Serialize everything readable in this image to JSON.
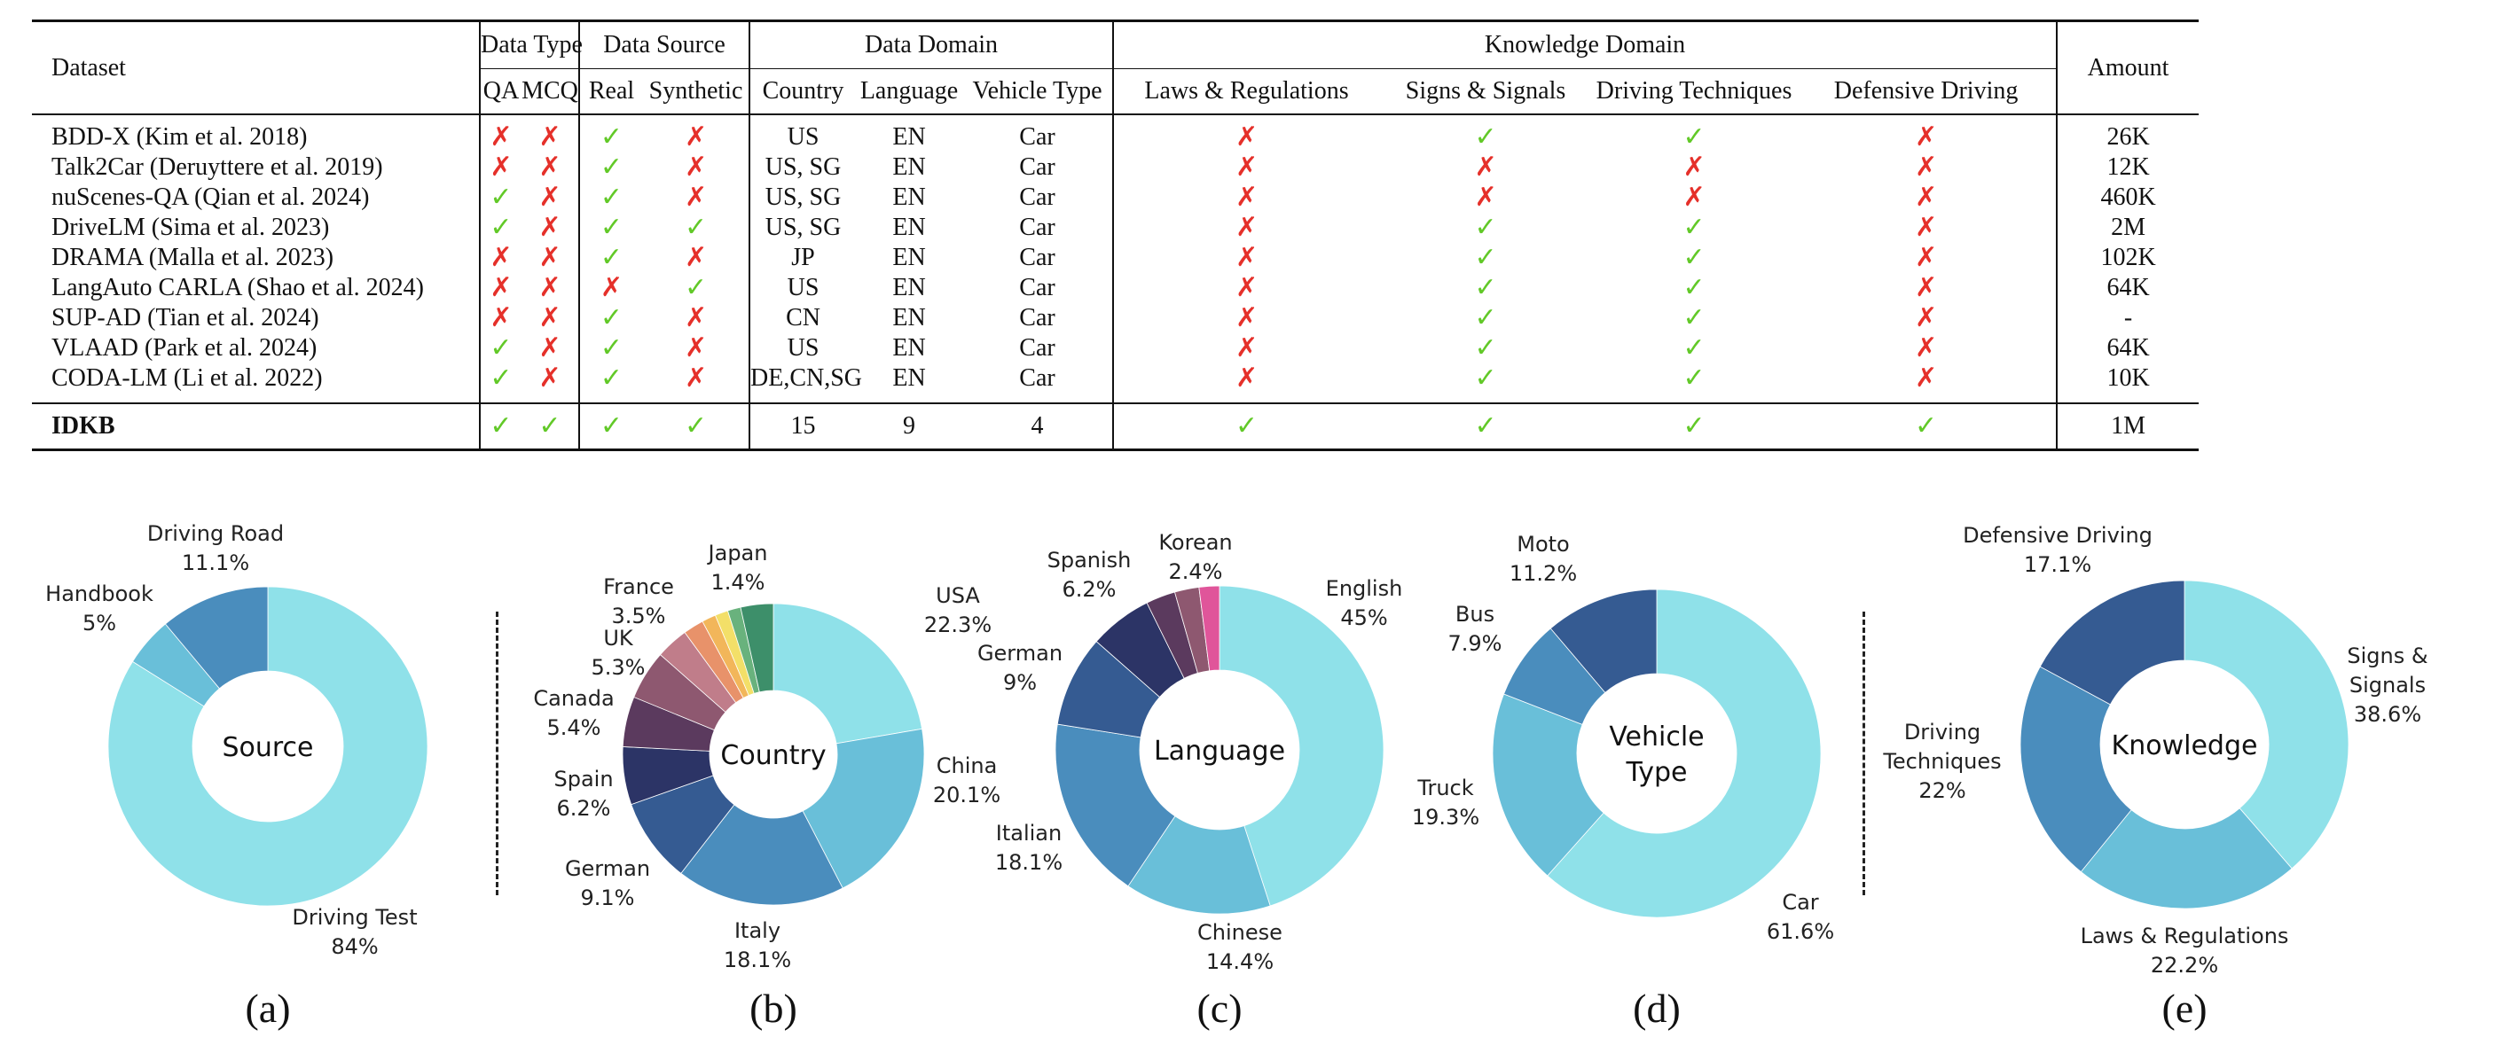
{
  "table": {
    "headers": {
      "dataset": "Dataset",
      "data_type": "Data Type",
      "data_source": "Data Source",
      "data_domain": "Data Domain",
      "knowledge_domain": "Knowledge Domain",
      "amount": "Amount",
      "qa": "QA",
      "mcq": "MCQ",
      "real": "Real",
      "synthetic": "Synthetic",
      "country": "Country",
      "language": "Language",
      "vehicle_type": "Vehicle Type",
      "laws": "Laws & Regulations",
      "signs": "Signs & Signals",
      "techniques": "Driving Techniques",
      "defensive": "Defensive Driving"
    },
    "symbols": {
      "yes": "✓",
      "no": "✗",
      "yes_color": "#62c928",
      "no_color": "#e5302a"
    },
    "rows": [
      {
        "dataset": "BDD-X (Kim et al. 2018)",
        "qa": "no",
        "mcq": "no",
        "real": "yes",
        "synthetic": "no",
        "country": "US",
        "language": "EN",
        "vehicle": "Car",
        "laws": "no",
        "signs": "yes",
        "techniques": "yes",
        "defensive": "no",
        "amount": "26K"
      },
      {
        "dataset": "Talk2Car (Deruyttere et al. 2019)",
        "qa": "no",
        "mcq": "no",
        "real": "yes",
        "synthetic": "no",
        "country": "US, SG",
        "language": "EN",
        "vehicle": "Car",
        "laws": "no",
        "signs": "no",
        "techniques": "no",
        "defensive": "no",
        "amount": "12K"
      },
      {
        "dataset": "nuScenes-QA (Qian et al. 2024)",
        "qa": "yes",
        "mcq": "no",
        "real": "yes",
        "synthetic": "no",
        "country": "US, SG",
        "language": "EN",
        "vehicle": "Car",
        "laws": "no",
        "signs": "no",
        "techniques": "no",
        "defensive": "no",
        "amount": "460K"
      },
      {
        "dataset": "DriveLM (Sima et al. 2023)",
        "qa": "yes",
        "mcq": "no",
        "real": "yes",
        "synthetic": "yes",
        "country": "US, SG",
        "language": "EN",
        "vehicle": "Car",
        "laws": "no",
        "signs": "yes",
        "techniques": "yes",
        "defensive": "no",
        "amount": "2M"
      },
      {
        "dataset": "DRAMA (Malla et al. 2023)",
        "qa": "no",
        "mcq": "no",
        "real": "yes",
        "synthetic": "no",
        "country": "JP",
        "language": "EN",
        "vehicle": "Car",
        "laws": "no",
        "signs": "yes",
        "techniques": "yes",
        "defensive": "no",
        "amount": "102K"
      },
      {
        "dataset": "LangAuto CARLA (Shao et al. 2024)",
        "qa": "no",
        "mcq": "no",
        "real": "no",
        "synthetic": "yes",
        "country": "US",
        "language": "EN",
        "vehicle": "Car",
        "laws": "no",
        "signs": "yes",
        "techniques": "yes",
        "defensive": "no",
        "amount": "64K"
      },
      {
        "dataset": "SUP-AD (Tian et al. 2024)",
        "qa": "no",
        "mcq": "no",
        "real": "yes",
        "synthetic": "no",
        "country": "CN",
        "language": "EN",
        "vehicle": "Car",
        "laws": "no",
        "signs": "yes",
        "techniques": "yes",
        "defensive": "no",
        "amount": "-"
      },
      {
        "dataset": "VLAAD (Park et al. 2024)",
        "qa": "yes",
        "mcq": "no",
        "real": "yes",
        "synthetic": "no",
        "country": "US",
        "language": "EN",
        "vehicle": "Car",
        "laws": "no",
        "signs": "yes",
        "techniques": "yes",
        "defensive": "no",
        "amount": "64K"
      },
      {
        "dataset": "CODA-LM (Li et al. 2022)",
        "qa": "yes",
        "mcq": "no",
        "real": "yes",
        "synthetic": "no",
        "country": "DE,CN,SG",
        "language": "EN",
        "vehicle": "Car",
        "laws": "no",
        "signs": "yes",
        "techniques": "yes",
        "defensive": "no",
        "amount": "10K"
      }
    ],
    "ours": {
      "dataset": "IDKB",
      "qa": "yes",
      "mcq": "yes",
      "real": "yes",
      "synthetic": "yes",
      "country": "15",
      "language": "9",
      "vehicle": "4",
      "laws": "yes",
      "signs": "yes",
      "techniques": "yes",
      "defensive": "yes",
      "amount": "1M"
    }
  },
  "chart_data": [
    {
      "type": "pie",
      "center_label": "Source",
      "panel_label": "(a)",
      "slices": [
        {
          "label": "Driving Test",
          "pct_text": "84%",
          "value": 84,
          "color": "#8fe1e9"
        },
        {
          "label": "Handbook",
          "pct_text": "5%",
          "value": 5,
          "color": "#69bfd9"
        },
        {
          "label": "Driving Road",
          "pct_text": "11.1%",
          "value": 11.1,
          "color": "#4a8dbd"
        }
      ]
    },
    {
      "type": "pie",
      "center_label": "Country",
      "panel_label": "(b)",
      "slices": [
        {
          "label": "USA",
          "pct_text": "22.3%",
          "value": 22.3,
          "color": "#8fe1e9"
        },
        {
          "label": "China",
          "pct_text": "20.1%",
          "value": 20.1,
          "color": "#69bfd9"
        },
        {
          "label": "Italy",
          "pct_text": "18.1%",
          "value": 18.1,
          "color": "#4a8dbd"
        },
        {
          "label": "German",
          "pct_text": "9.1%",
          "value": 9.1,
          "color": "#355b92"
        },
        {
          "label": "Spain",
          "pct_text": "6.2%",
          "value": 6.2,
          "color": "#2c3466"
        },
        {
          "label": "Canada",
          "pct_text": "5.4%",
          "value": 5.4,
          "color": "#5b3a5e"
        },
        {
          "label": "UK",
          "pct_text": "5.3%",
          "value": 5.3,
          "color": "#8e5870"
        },
        {
          "label": "France",
          "pct_text": "3.5%",
          "value": 3.5,
          "color": "#c07d8a"
        },
        {
          "label": "",
          "pct_text": "",
          "value": 2.2,
          "color": "#e8926a"
        },
        {
          "label": "",
          "pct_text": "",
          "value": 1.5,
          "color": "#f2b65a"
        },
        {
          "label": "",
          "pct_text": "",
          "value": 1.4,
          "color": "#f3df68"
        },
        {
          "label": "Japan",
          "pct_text": "1.4%",
          "value": 1.4,
          "color": "#69b27d"
        },
        {
          "label": "",
          "pct_text": "",
          "value": 3.5,
          "color": "#3d8f6a"
        }
      ]
    },
    {
      "type": "pie",
      "center_label": "Language",
      "panel_label": "(c)",
      "slices": [
        {
          "label": "English",
          "pct_text": "45%",
          "value": 45,
          "color": "#8fe1e9"
        },
        {
          "label": "Chinese",
          "pct_text": "14.4%",
          "value": 14.4,
          "color": "#69bfd9"
        },
        {
          "label": "Italian",
          "pct_text": "18.1%",
          "value": 18.1,
          "color": "#4a8dbd"
        },
        {
          "label": "German",
          "pct_text": "9%",
          "value": 9,
          "color": "#355b92"
        },
        {
          "label": "Spanish",
          "pct_text": "6.2%",
          "value": 6.2,
          "color": "#2c3466"
        },
        {
          "label": "",
          "pct_text": "",
          "value": 2.9,
          "color": "#5b3a5e"
        },
        {
          "label": "Korean",
          "pct_text": "2.4%",
          "value": 2.4,
          "color": "#8e5870"
        },
        {
          "label": "",
          "pct_text": "",
          "value": 2.0,
          "color": "#e0559a"
        }
      ]
    },
    {
      "type": "pie",
      "center_label": "Vehicle Type",
      "center_lines": [
        "Vehicle",
        "Type"
      ],
      "panel_label": "(d)",
      "slices": [
        {
          "label": "Car",
          "pct_text": "61.6%",
          "value": 61.6,
          "color": "#8fe1e9"
        },
        {
          "label": "Truck",
          "pct_text": "19.3%",
          "value": 19.3,
          "color": "#69bfd9"
        },
        {
          "label": "Bus",
          "pct_text": "7.9%",
          "value": 7.9,
          "color": "#4a8dbd"
        },
        {
          "label": "Moto",
          "pct_text": "11.2%",
          "value": 11.2,
          "color": "#355b92"
        }
      ]
    },
    {
      "type": "pie",
      "center_label": "Knowledge",
      "panel_label": "(e)",
      "slices": [
        {
          "label": "Signs & Signals",
          "label_lines": [
            "Signs &",
            "Signals"
          ],
          "pct_text": "38.6%",
          "value": 38.6,
          "color": "#8fe1e9"
        },
        {
          "label": "Laws & Regulations",
          "pct_text": "22.2%",
          "value": 22.2,
          "color": "#69bfd9"
        },
        {
          "label": "Driving Techniques",
          "label_lines": [
            "Driving",
            "Techniques"
          ],
          "pct_text": "22%",
          "value": 22,
          "color": "#4a8dbd"
        },
        {
          "label": "Defensive Driving",
          "pct_text": "17.1%",
          "value": 17.1,
          "color": "#355b92"
        }
      ]
    }
  ]
}
